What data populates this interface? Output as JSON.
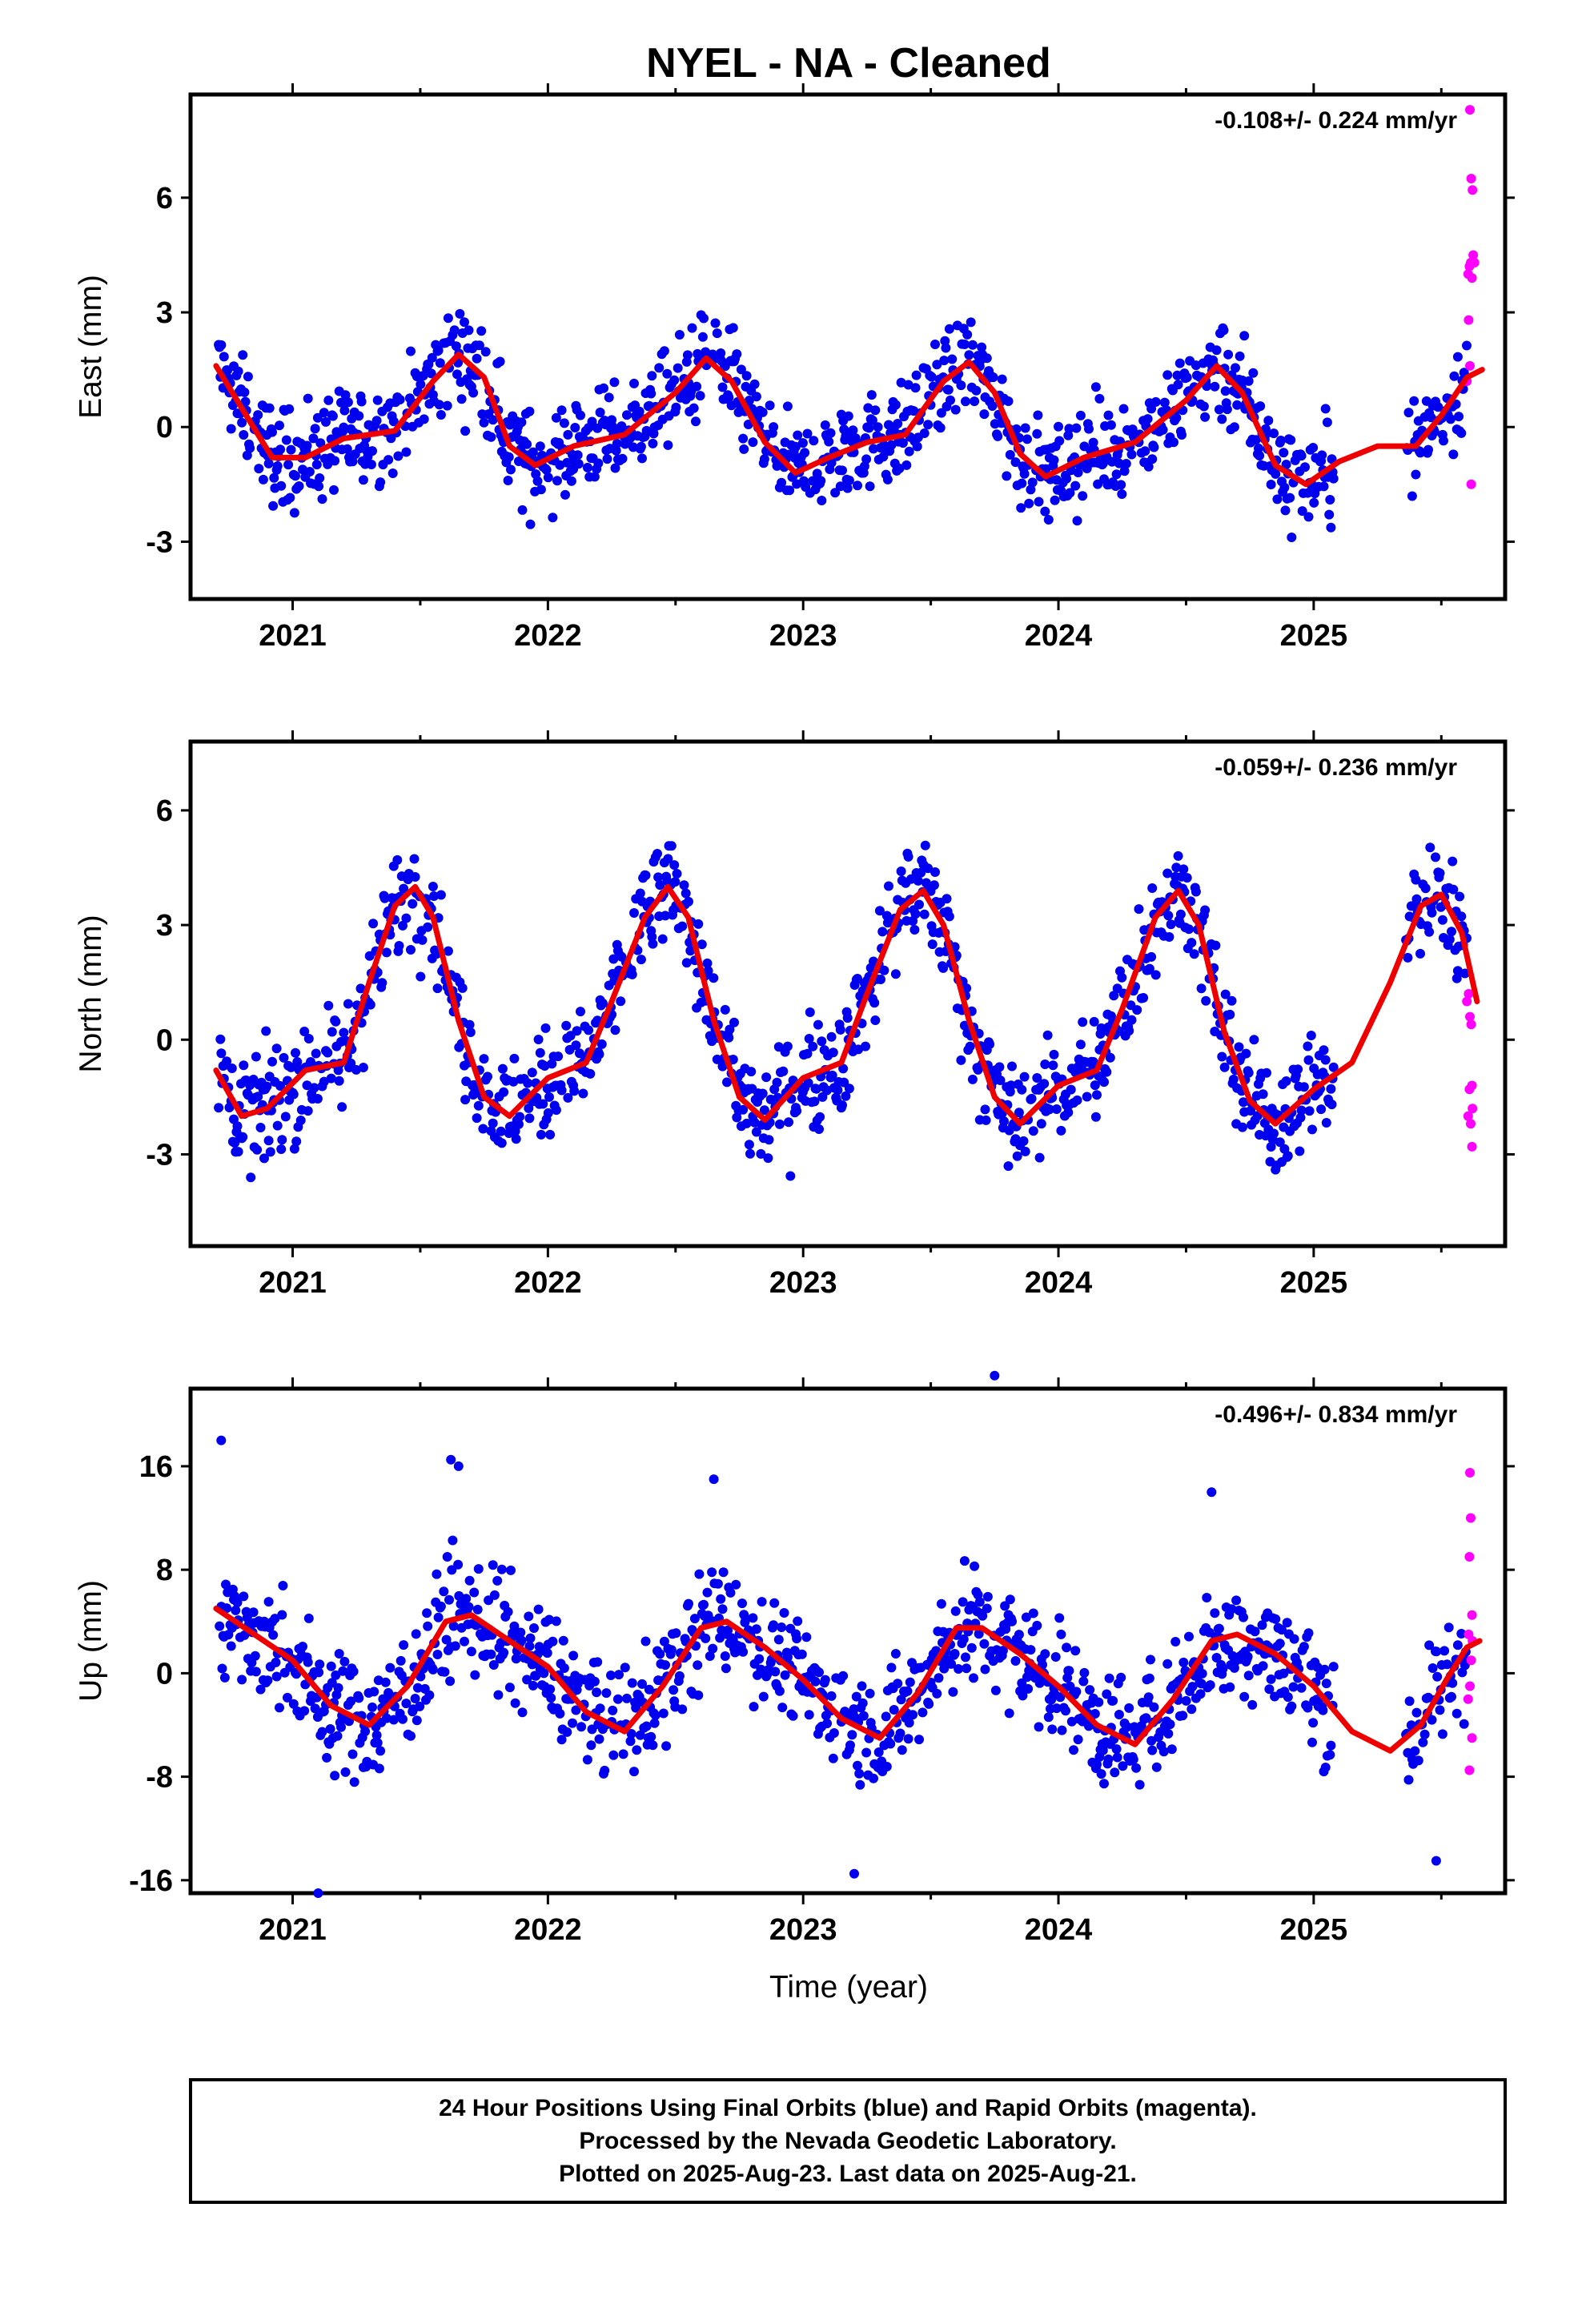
{
  "figure": {
    "title": "NYEL  - NA - Cleaned",
    "xlabel": "Time (year)",
    "caption": [
      "24 Hour Positions Using Final Orbits (blue) and Rapid Orbits (magenta).",
      "Processed by the Nevada Geodetic Laboratory.",
      "Plotted on 2025-Aug-23. Last data on 2025-Aug-21."
    ],
    "colors": {
      "final": "#0000ee",
      "rapid": "#ff00ff",
      "fit": "#ee0000",
      "frame": "#000000"
    }
  },
  "chart_data": [
    {
      "type": "scatter",
      "component": "east",
      "ylabel": "East (mm)",
      "rate": "-0.108+/- 0.224 mm/yr",
      "xlim": [
        2020.6,
        2025.75
      ],
      "ylim": [
        -4.5,
        8.7
      ],
      "yticks": [
        -3,
        0,
        3,
        6
      ],
      "ytick_labels": [
        "-3",
        "0",
        "3",
        "6"
      ],
      "xticks": [
        2021,
        2022,
        2023,
        2024,
        2025
      ],
      "xtick_labels": [
        "2021",
        "2022",
        "2023",
        "2024",
        "2025"
      ],
      "trend": -0.108,
      "amp": 1.1,
      "phase": 0.62,
      "offset": 0.05,
      "fit": [
        [
          2020.7,
          1.6
        ],
        [
          2020.8,
          0.5
        ],
        [
          2020.92,
          -0.8
        ],
        [
          2021.05,
          -0.8
        ],
        [
          2021.2,
          -0.3
        ],
        [
          2021.4,
          -0.1
        ],
        [
          2021.55,
          1.2
        ],
        [
          2021.65,
          1.9
        ],
        [
          2021.75,
          1.3
        ],
        [
          2021.85,
          -0.5
        ],
        [
          2021.95,
          -1.0
        ],
        [
          2022.1,
          -0.5
        ],
        [
          2022.3,
          -0.2
        ],
        [
          2022.5,
          0.9
        ],
        [
          2022.62,
          1.8
        ],
        [
          2022.72,
          1.2
        ],
        [
          2022.85,
          -0.4
        ],
        [
          2022.97,
          -1.2
        ],
        [
          2023.1,
          -0.8
        ],
        [
          2023.25,
          -0.4
        ],
        [
          2023.4,
          -0.2
        ],
        [
          2023.55,
          1.2
        ],
        [
          2023.65,
          1.7
        ],
        [
          2023.75,
          0.9
        ],
        [
          2023.85,
          -0.7
        ],
        [
          2023.95,
          -1.3
        ],
        [
          2024.1,
          -0.8
        ],
        [
          2024.3,
          -0.4
        ],
        [
          2024.5,
          0.7
        ],
        [
          2024.62,
          1.6
        ],
        [
          2024.72,
          0.9
        ],
        [
          2024.85,
          -1.0
        ],
        [
          2024.97,
          -1.5
        ],
        [
          2025.1,
          -0.9
        ],
        [
          2025.25,
          -0.5
        ],
        [
          2025.4,
          -0.5
        ],
        [
          2025.5,
          0.3
        ],
        [
          2025.6,
          1.3
        ],
        [
          2025.66,
          1.5
        ]
      ],
      "rapid": [
        [
          2025.612,
          8.3
        ],
        [
          2025.617,
          6.5
        ],
        [
          2025.622,
          6.2
        ],
        [
          2025.605,
          4.0
        ],
        [
          2025.61,
          4.2
        ],
        [
          2025.615,
          4.3
        ],
        [
          2025.62,
          3.9
        ],
        [
          2025.625,
          4.5
        ],
        [
          2025.63,
          4.3
        ],
        [
          2025.607,
          2.8
        ],
        [
          2025.612,
          1.6
        ],
        [
          2025.6,
          1.2
        ],
        [
          2025.617,
          -1.5
        ]
      ]
    },
    {
      "type": "scatter",
      "component": "north",
      "ylabel": "North (mm)",
      "rate": "-0.059+/- 0.236 mm/yr",
      "xlim": [
        2020.6,
        2025.75
      ],
      "ylim": [
        -5.4,
        7.8
      ],
      "yticks": [
        -3,
        0,
        3,
        6
      ],
      "ytick_labels": [
        "-3",
        "0",
        "3",
        "6"
      ],
      "xticks": [
        2021,
        2022,
        2023,
        2024,
        2025
      ],
      "xtick_labels": [
        "2021",
        "2022",
        "2023",
        "2024",
        "2025"
      ],
      "trend": -0.059,
      "amp": 2.5,
      "phase": 0.48,
      "offset": 0.6,
      "fit": [
        [
          2020.7,
          -0.8
        ],
        [
          2020.8,
          -2.0
        ],
        [
          2020.9,
          -1.8
        ],
        [
          2021.05,
          -0.8
        ],
        [
          2021.2,
          -0.6
        ],
        [
          2021.3,
          1.5
        ],
        [
          2021.4,
          3.5
        ],
        [
          2021.48,
          4.0
        ],
        [
          2021.55,
          3.2
        ],
        [
          2021.65,
          0.5
        ],
        [
          2021.75,
          -1.5
        ],
        [
          2021.85,
          -2.0
        ],
        [
          2022.0,
          -1.0
        ],
        [
          2022.15,
          -0.6
        ],
        [
          2022.25,
          1.0
        ],
        [
          2022.38,
          3.2
        ],
        [
          2022.47,
          4.0
        ],
        [
          2022.55,
          3.2
        ],
        [
          2022.65,
          0.5
        ],
        [
          2022.75,
          -1.5
        ],
        [
          2022.85,
          -2.1
        ],
        [
          2023.0,
          -1.0
        ],
        [
          2023.15,
          -0.6
        ],
        [
          2023.25,
          1.2
        ],
        [
          2023.38,
          3.4
        ],
        [
          2023.47,
          3.9
        ],
        [
          2023.55,
          3.0
        ],
        [
          2023.65,
          0.5
        ],
        [
          2023.75,
          -1.5
        ],
        [
          2023.85,
          -2.2
        ],
        [
          2024.0,
          -1.2
        ],
        [
          2024.15,
          -0.8
        ],
        [
          2024.25,
          0.8
        ],
        [
          2024.38,
          3.2
        ],
        [
          2024.47,
          3.9
        ],
        [
          2024.55,
          3.0
        ],
        [
          2024.65,
          0.2
        ],
        [
          2024.75,
          -1.6
        ],
        [
          2024.85,
          -2.2
        ],
        [
          2025.0,
          -1.3
        ],
        [
          2025.15,
          -0.6
        ],
        [
          2025.3,
          1.5
        ],
        [
          2025.42,
          3.5
        ],
        [
          2025.5,
          3.8
        ],
        [
          2025.58,
          2.8
        ],
        [
          2025.64,
          1.0
        ]
      ],
      "rapid": [
        [
          2025.6,
          1.0
        ],
        [
          2025.607,
          1.2
        ],
        [
          2025.612,
          0.6
        ],
        [
          2025.617,
          0.4
        ],
        [
          2025.62,
          -1.2
        ],
        [
          2025.61,
          -1.3
        ],
        [
          2025.622,
          -1.8
        ],
        [
          2025.605,
          -2.0
        ],
        [
          2025.615,
          -2.2
        ],
        [
          2025.62,
          -2.8
        ]
      ]
    },
    {
      "type": "scatter",
      "component": "up",
      "ylabel": "Up (mm)",
      "rate": "-0.496+/- 0.834 mm/yr",
      "xlim": [
        2020.6,
        2025.75
      ],
      "ylim": [
        -17,
        22
      ],
      "yticks": [
        -16,
        -8,
        0,
        8,
        16
      ],
      "ytick_labels": [
        "-16",
        "-8",
        "0",
        "8",
        "16"
      ],
      "xticks": [
        2021,
        2022,
        2023,
        2024,
        2025
      ],
      "xtick_labels": [
        "2021",
        "2022",
        "2023",
        "2024",
        "2025"
      ],
      "trend": -0.496,
      "amp": 4.5,
      "phase": 0.68,
      "offset": 0.8,
      "fit": [
        [
          2020.7,
          5.0
        ],
        [
          2020.85,
          3.0
        ],
        [
          2021.0,
          1.0
        ],
        [
          2021.15,
          -2.5
        ],
        [
          2021.3,
          -4.0
        ],
        [
          2021.45,
          -1.0
        ],
        [
          2021.6,
          4.0
        ],
        [
          2021.7,
          4.5
        ],
        [
          2021.85,
          2.5
        ],
        [
          2022.0,
          0.5
        ],
        [
          2022.15,
          -3.0
        ],
        [
          2022.3,
          -4.5
        ],
        [
          2022.45,
          -1.0
        ],
        [
          2022.6,
          3.5
        ],
        [
          2022.7,
          4.0
        ],
        [
          2022.85,
          2.0
        ],
        [
          2023.0,
          -0.5
        ],
        [
          2023.15,
          -3.5
        ],
        [
          2023.3,
          -5.0
        ],
        [
          2023.45,
          -1.5
        ],
        [
          2023.6,
          3.5
        ],
        [
          2023.7,
          3.5
        ],
        [
          2023.85,
          1.5
        ],
        [
          2024.0,
          -1.0
        ],
        [
          2024.15,
          -4.0
        ],
        [
          2024.3,
          -5.5
        ],
        [
          2024.45,
          -2.0
        ],
        [
          2024.6,
          2.5
        ],
        [
          2024.7,
          3.0
        ],
        [
          2024.85,
          1.5
        ],
        [
          2025.0,
          -1.0
        ],
        [
          2025.15,
          -4.5
        ],
        [
          2025.3,
          -6.0
        ],
        [
          2025.42,
          -4.0
        ],
        [
          2025.52,
          -0.5
        ],
        [
          2025.6,
          2.0
        ],
        [
          2025.65,
          2.5
        ]
      ],
      "rapid": [
        [
          2025.612,
          15.5
        ],
        [
          2025.615,
          12.0
        ],
        [
          2025.61,
          9.0
        ],
        [
          2025.62,
          4.5
        ],
        [
          2025.607,
          3.0
        ],
        [
          2025.622,
          2.5
        ],
        [
          2025.617,
          1.0
        ],
        [
          2025.612,
          -1.0
        ],
        [
          2025.605,
          -2.0
        ],
        [
          2025.62,
          -5.0
        ],
        [
          2025.61,
          -7.5
        ]
      ],
      "outliers": [
        [
          2020.72,
          18.0
        ],
        [
          2021.62,
          16.5
        ],
        [
          2021.65,
          16.0
        ],
        [
          2022.65,
          15.0
        ],
        [
          2023.75,
          23.0
        ],
        [
          2024.6,
          14.0
        ],
        [
          2021.1,
          -17.0
        ],
        [
          2023.2,
          -15.5
        ],
        [
          2025.48,
          -14.5
        ]
      ]
    }
  ]
}
